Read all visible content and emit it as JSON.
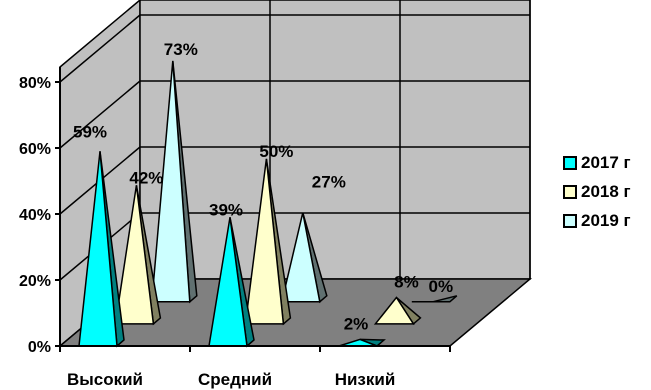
{
  "chart_data": {
    "type": "bar",
    "bar_shape": "3d-pyramid",
    "categories": [
      "Высокий",
      "Средний",
      "Низкий"
    ],
    "series": [
      {
        "name": "2017 г",
        "values": [
          59,
          39,
          2
        ],
        "labels": [
          "59%",
          "39%",
          "2%"
        ],
        "color": "#00FFFF",
        "shade": "#008080"
      },
      {
        "name": "2018 г",
        "values": [
          42,
          50,
          8
        ],
        "labels": [
          "42%",
          "50%",
          "8%"
        ],
        "color": "#FFFFCC",
        "shade": "#808060"
      },
      {
        "name": "2019 г",
        "values": [
          73,
          27,
          0
        ],
        "labels": [
          "73%",
          "27%",
          "0%"
        ],
        "color": "#CCFFFF",
        "shade": "#607070"
      }
    ],
    "yticks": [
      "0%",
      "20%",
      "40%",
      "60%",
      "80%"
    ],
    "ylim": [
      0,
      80
    ],
    "grid": true,
    "wall_color": "#C0C0C0",
    "floor_color": "#808080",
    "legend": "right"
  }
}
